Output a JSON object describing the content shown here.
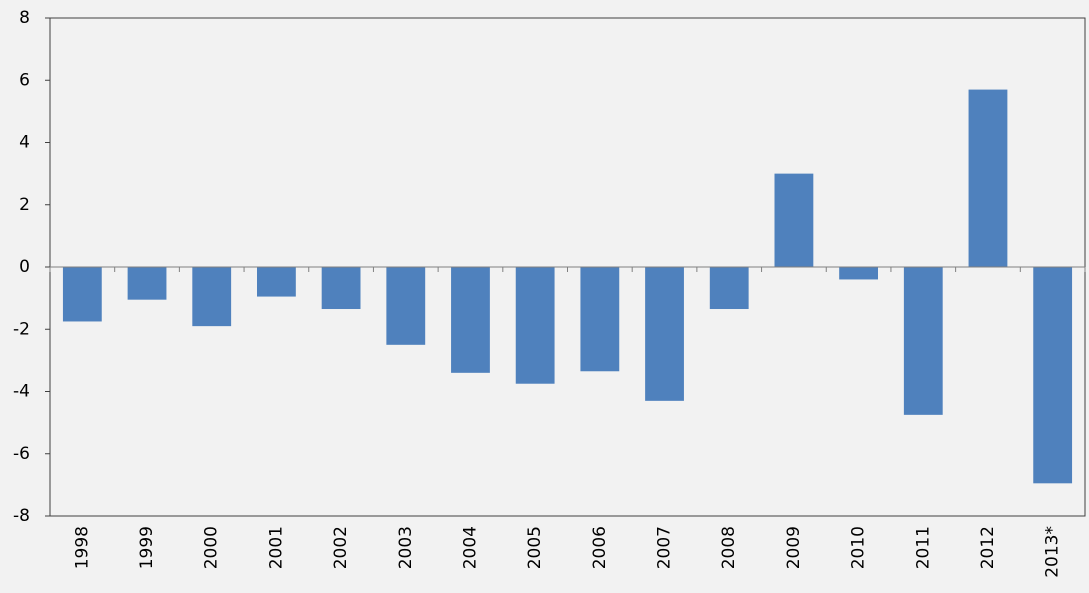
{
  "chart_data": {
    "type": "bar",
    "categories": [
      "1998",
      "1999",
      "2000",
      "2001",
      "2002",
      "2003",
      "2004",
      "2005",
      "2006",
      "2007",
      "2008",
      "2009",
      "2010",
      "2011",
      "2012",
      "2013*"
    ],
    "values": [
      -1.75,
      -1.05,
      -1.9,
      -0.95,
      -1.35,
      -2.5,
      -3.4,
      -3.75,
      -3.35,
      -4.3,
      -1.35,
      3.0,
      -0.4,
      -4.75,
      5.7,
      -6.95
    ],
    "color": "#4f81bd",
    "ylim": [
      -8,
      8
    ],
    "yticks": [
      -8,
      -6,
      -4,
      -2,
      0,
      2,
      4,
      6,
      8
    ],
    "grid": false
  }
}
